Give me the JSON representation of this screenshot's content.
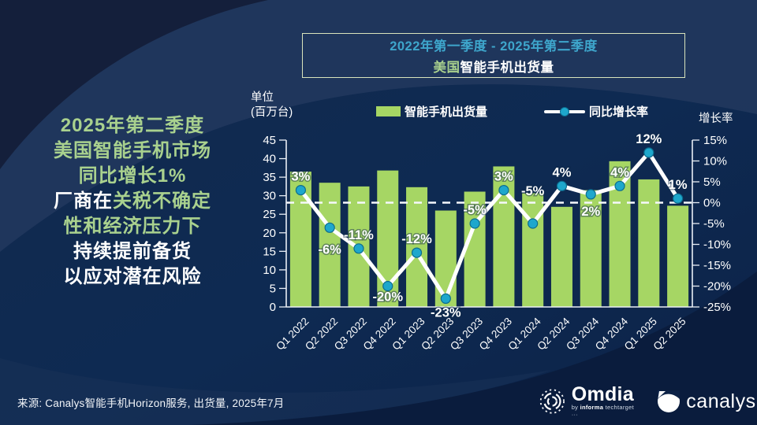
{
  "panel_text": {
    "lines": [
      {
        "segments": [
          {
            "t": "2025年第二季度",
            "c": "green"
          }
        ]
      },
      {
        "segments": [
          {
            "t": "美国智能手机市场",
            "c": "green"
          }
        ]
      },
      {
        "segments": [
          {
            "t": "同比增长1%",
            "c": "green"
          }
        ]
      },
      {
        "segments": [
          {
            "t": "厂商在",
            "c": "white"
          },
          {
            "t": "关税不确定",
            "c": "green"
          }
        ]
      },
      {
        "segments": [
          {
            "t": "性和经济压力下",
            "c": "green"
          }
        ]
      },
      {
        "segments": [
          {
            "t": "持续提前备货",
            "c": "white"
          }
        ]
      },
      {
        "segments": [
          {
            "t": "以应对潜在风险",
            "c": "white"
          }
        ]
      }
    ]
  },
  "title": {
    "line1": "2022年第一季度 - 2025年第二季度",
    "line2_highlight": "美国",
    "line2_rest": "智能手机出货量"
  },
  "legend": {
    "bar_label": "智能手机出货量",
    "line_label": "同比增长率"
  },
  "axis_titles": {
    "left_line1": "单位",
    "left_line2": "(百万台)",
    "right": "增长率"
  },
  "source": "来源: Canalys智能手机Horizon服务, 出货量, 2025年7月",
  "logos": {
    "omdia": "Omdia",
    "omdia_sub_prefix": "by ",
    "omdia_sub_bold": "informa",
    "omdia_sub_rest": " techtarget ···",
    "canalys": "canalys"
  },
  "colors": {
    "bar": "#a6d664",
    "line": "#ffffff",
    "marker_fill": "#1ea7cc",
    "marker_stroke": "#0d6c8e",
    "axis": "#e9eef5",
    "tick_text": "#ffffff",
    "label_text": "#ffffff",
    "label_halo": "#0d2748",
    "accent_green": "#a9d18e",
    "accent_teal": "#3ea6cc"
  },
  "chart_data": {
    "type": "bar+line combo",
    "title": "美国智能手机出货量 2022年第一季度 - 2025年第二季度",
    "categories": [
      "Q1 2022",
      "Q2 2022",
      "Q3 2022",
      "Q4 2022",
      "Q1 2023",
      "Q2 2023",
      "Q3 2023",
      "Q4 2023",
      "Q1 2024",
      "Q2 2024",
      "Q3 2024",
      "Q4 2024",
      "Q1 2025",
      "Q2 2025"
    ],
    "series": [
      {
        "name": "智能手机出货量",
        "type": "bar",
        "axis": "left",
        "unit": "百万台",
        "values": [
          36.5,
          33.5,
          32.5,
          36.8,
          32.3,
          26.0,
          31.1,
          37.9,
          30.7,
          27.0,
          31.5,
          39.3,
          34.4,
          27.3
        ]
      },
      {
        "name": "同比增长率",
        "type": "line",
        "axis": "right",
        "unit": "%",
        "values": [
          3,
          -6,
          -11,
          -20,
          -12,
          -23,
          -5,
          3,
          -5,
          4,
          2,
          4,
          12,
          1
        ],
        "point_labels": [
          "3%",
          "-6%",
          "-11%",
          "-20%",
          "-12%",
          "-23%",
          "-5%",
          "3%",
          "-5%",
          "4%",
          "2%",
          "4%",
          "12%",
          "1%"
        ],
        "label_side": [
          "above",
          "below",
          "above",
          "below",
          "above",
          "below",
          "above",
          "above",
          "above",
          "above",
          "below",
          "above",
          "above",
          "above"
        ],
        "label_dy": [
          0,
          6,
          0,
          -8,
          0,
          -4,
          0,
          0,
          -24,
          0,
          0,
          0,
          0,
          0
        ]
      }
    ],
    "left_axis": {
      "title": "单位 (百万台)",
      "min": 0,
      "max": 45,
      "step": 5
    },
    "right_axis": {
      "title": "增长率",
      "min": -25,
      "max": 15,
      "step": 5,
      "suffix": "%"
    },
    "zero_growth_dashed_line": true,
    "legend_position": "top",
    "grid": false
  }
}
